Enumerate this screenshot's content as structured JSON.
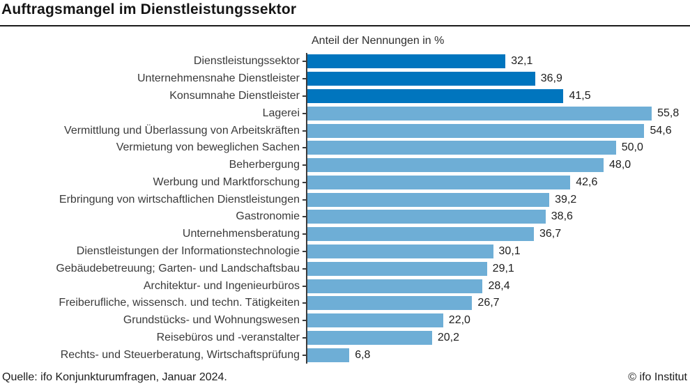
{
  "header": {
    "title": "Auftragsmangel im Dienstleistungssektor"
  },
  "chart_data": {
    "type": "bar",
    "orientation": "horizontal",
    "title": "Auftragsmangel im Dienstleistungssektor",
    "axis_title": "Anteil der Nennungen in %",
    "xlabel": "Anteil der Nennungen in %",
    "ylabel": "",
    "xlim": [
      0,
      62
    ],
    "grid": false,
    "legend": "none",
    "value_labels": "outside-end, German decimal comma",
    "colors": {
      "highlight": "#0075BE",
      "default": "#6EAED6",
      "axis": "#3c3c3c",
      "title_text": "#151515",
      "label_text": "#3a3a3a"
    },
    "categories": [
      "Dienstleistungssektor",
      "Unternehmensnahe Dienstleister",
      "Konsumnahe Dienstleister",
      "Lagerei",
      "Vermittlung und Überlassung von Arbeitskräften",
      "Vermietung von beweglichen Sachen",
      "Beherbergung",
      "Werbung und Marktforschung",
      "Erbringung von wirtschaftlichen Dienstleistungen",
      "Gastronomie",
      "Unternehmensberatung",
      "Dienstleistungen der Informationstechnologie",
      "Gebäudebetreuung; Garten- und Landschaftsbau",
      "Architektur- und Ingenieurbüros",
      "Freiberufliche, wissensch. und techn. Tätigkeiten",
      "Grundstücks- und Wohnungswesen",
      "Reisebüros und -veranstalter",
      "Rechts- und Steuerberatung, Wirtschaftsprüfung"
    ],
    "values": [
      32.1,
      36.9,
      41.5,
      55.8,
      54.6,
      50.0,
      48.0,
      42.6,
      39.2,
      38.6,
      36.7,
      30.1,
      29.1,
      28.4,
      26.7,
      22.0,
      20.2,
      6.8
    ],
    "rows": [
      {
        "label": "Dienstleistungssektor",
        "value": 32.1,
        "display": "32,1",
        "emphasis": true
      },
      {
        "label": "Unternehmensnahe Dienstleister",
        "value": 36.9,
        "display": "36,9",
        "emphasis": true
      },
      {
        "label": "Konsumnahe Dienstleister",
        "value": 41.5,
        "display": "41,5",
        "emphasis": true
      },
      {
        "label": "Lagerei",
        "value": 55.8,
        "display": "55,8",
        "emphasis": false
      },
      {
        "label": "Vermittlung und Überlassung von Arbeitskräften",
        "value": 54.6,
        "display": "54,6",
        "emphasis": false
      },
      {
        "label": "Vermietung von beweglichen Sachen",
        "value": 50.0,
        "display": "50,0",
        "emphasis": false
      },
      {
        "label": "Beherbergung",
        "value": 48.0,
        "display": "48,0",
        "emphasis": false
      },
      {
        "label": "Werbung und Marktforschung",
        "value": 42.6,
        "display": "42,6",
        "emphasis": false
      },
      {
        "label": "Erbringung von wirtschaftlichen Dienstleistungen",
        "value": 39.2,
        "display": "39,2",
        "emphasis": false
      },
      {
        "label": "Gastronomie",
        "value": 38.6,
        "display": "38,6",
        "emphasis": false
      },
      {
        "label": "Unternehmensberatung",
        "value": 36.7,
        "display": "36,7",
        "emphasis": false
      },
      {
        "label": "Dienstleistungen der Informationstechnologie",
        "value": 30.1,
        "display": "30,1",
        "emphasis": false
      },
      {
        "label": "Gebäudebetreuung; Garten- und Landschaftsbau",
        "value": 29.1,
        "display": "29,1",
        "emphasis": false
      },
      {
        "label": "Architektur- und Ingenieurbüros",
        "value": 28.4,
        "display": "28,4",
        "emphasis": false
      },
      {
        "label": "Freiberufliche, wissensch. und techn. Tätigkeiten",
        "value": 26.7,
        "display": "26,7",
        "emphasis": false
      },
      {
        "label": "Grundstücks- und Wohnungswesen",
        "value": 22.0,
        "display": "22,0",
        "emphasis": false
      },
      {
        "label": "Reisebüros und -veranstalter",
        "value": 20.2,
        "display": "20,2",
        "emphasis": false
      },
      {
        "label": "Rechts- und Steuerberatung, Wirtschaftsprüfung",
        "value": 6.8,
        "display": "6,8",
        "emphasis": false
      }
    ]
  },
  "footer": {
    "source": "Quelle: ifo Konjunkturumfragen, Januar 2024.",
    "copyright": "© ifo Institut"
  }
}
